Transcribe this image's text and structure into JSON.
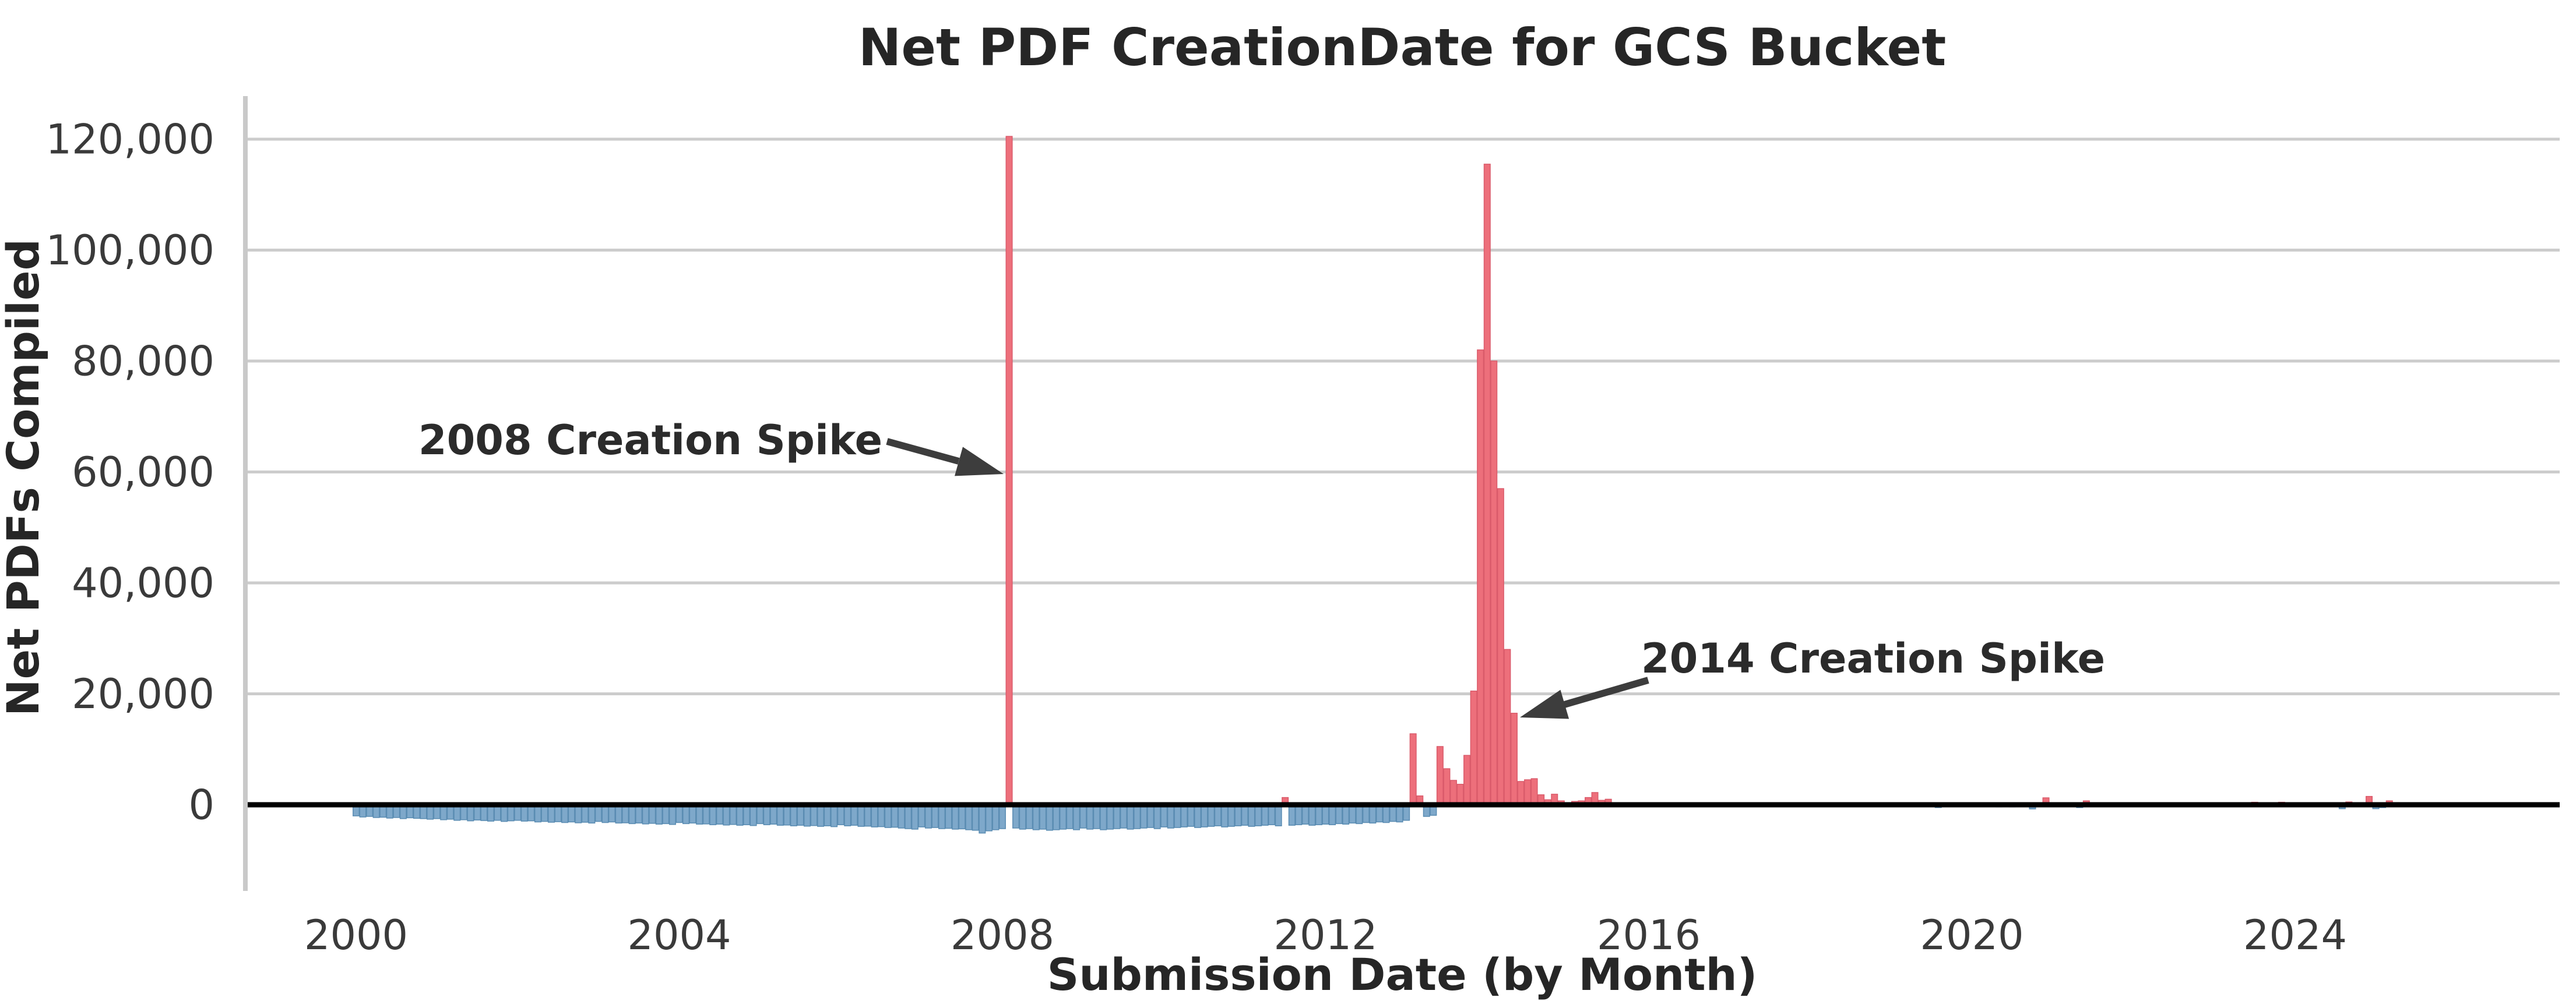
{
  "labels": {
    "title": "Net PDF CreationDate for GCS Bucket",
    "xlabel": "Submission Date (by Month)",
    "ylabel": "Net PDFs Compiled"
  },
  "colors": {
    "positive_bar": "#ed6f7b",
    "positive_bar_edge": "#da5b6b",
    "negative_bar": "#7ea8ca",
    "negative_bar_edge": "#5a8cb2",
    "gridline": "#cccccc",
    "zero_line": "#000000",
    "axis_spine": "#c9c9c9",
    "text": "#262626",
    "arrow": "#3d3d3d"
  },
  "chart_data": {
    "type": "bar",
    "title": "Net PDF CreationDate for GCS Bucket",
    "xlabel": "Submission Date (by Month)",
    "ylabel": "Net PDFs Compiled",
    "grid": "horizontal",
    "legend": "none",
    "x_unit": "month",
    "start_month": "2000-01",
    "end_month": "2025-04",
    "ylim": [
      -15500,
      127700
    ],
    "xlim": [
      "1998-08",
      "2027-04"
    ],
    "yticks": [
      {
        "label": "120,000",
        "value": 120000
      },
      {
        "label": "100,000",
        "value": 100000
      },
      {
        "label": "80,000",
        "value": 80000
      },
      {
        "label": "60,000",
        "value": 60000
      },
      {
        "label": "40,000",
        "value": 40000
      },
      {
        "label": "20,000",
        "value": 20000
      },
      {
        "label": "0",
        "value": 0
      }
    ],
    "xticks": [
      {
        "label": "2000",
        "value": 2000
      },
      {
        "label": "2004",
        "value": 2004
      },
      {
        "label": "2008",
        "value": 2008
      },
      {
        "label": "2012",
        "value": 2012
      },
      {
        "label": "2016",
        "value": 2016
      },
      {
        "label": "2020",
        "value": 2020
      },
      {
        "label": "2024",
        "value": 2024
      }
    ],
    "annotations": [
      {
        "text": "2008 Creation Spike",
        "points_to": {
          "month": "2008-02",
          "value": 60000
        }
      },
      {
        "text": "2014 Creation Spike",
        "points_to": {
          "month": "2014-05",
          "value": 19000
        }
      }
    ],
    "notable_points": [
      {
        "month": "2008-02",
        "value": 120500
      },
      {
        "month": "2014-01",
        "value": 115500
      }
    ],
    "monthly_values_by_year": {
      "2000": [
        -2000,
        -2200,
        -2100,
        -2300,
        -2250,
        -2400,
        -2300,
        -2500,
        -2350,
        -2450,
        -2500,
        -2600
      ],
      "2001": [
        -2500,
        -2700,
        -2600,
        -2800,
        -2700,
        -2900,
        -2750,
        -2850,
        -2950,
        -2800,
        -3000,
        -2900
      ],
      "2002": [
        -2800,
        -2950,
        -2900,
        -3100,
        -3000,
        -3150,
        -3050,
        -3200,
        -3100,
        -3250,
        -3150,
        -3300
      ],
      "2003": [
        -3000,
        -3200,
        -3100,
        -3300,
        -3250,
        -3400,
        -3300,
        -3450,
        -3350,
        -3500,
        -3400,
        -3550
      ],
      "2004": [
        -3200,
        -3400,
        -3300,
        -3500,
        -3450,
        -3600,
        -3500,
        -3650,
        -3550,
        -3700,
        -3600,
        -3750
      ],
      "2005": [
        -3400,
        -3600,
        -3500,
        -3700,
        -3650,
        -3800,
        -3700,
        -3850,
        -3750,
        -3900,
        -3800,
        -3950
      ],
      "2006": [
        -3600,
        -3800,
        -3700,
        -3900,
        -3850,
        -4000,
        -3950,
        -4100,
        -4050,
        -4200,
        -4300,
        -4400
      ],
      "2007": [
        -4000,
        -4200,
        -4100,
        -4300,
        -4250,
        -4400,
        -4350,
        -4500,
        -4600,
        -5100,
        -4700,
        -4500
      ],
      "2008": [
        -4300,
        120500,
        -4200,
        -4400,
        -4300,
        -4500,
        -4400,
        -4600,
        -4500,
        -4400,
        -4300,
        -4500
      ],
      "2009": [
        -4200,
        -4400,
        -4300,
        -4500,
        -4400,
        -4300,
        -4200,
        -4400,
        -4300,
        -4200,
        -4100,
        -4300
      ],
      "2010": [
        -4000,
        -4200,
        -4100,
        -4000,
        -3900,
        -4100,
        -4000,
        -3900,
        -3800,
        -4000,
        -3900,
        -3800
      ],
      "2011": [
        -3700,
        -3900,
        -3800,
        -3700,
        -3600,
        -3800,
        1300,
        -3700,
        -3600,
        -3500,
        -3700,
        -3600
      ],
      "2012": [
        -3500,
        -3600,
        -3400,
        -3500,
        -3300,
        -3400,
        -3200,
        -3300,
        -3100,
        -3200,
        -3000,
        -3100
      ],
      "2013": [
        -2800,
        12800,
        1600,
        -2100,
        -1900,
        10500,
        6500,
        4400,
        3700,
        8900,
        20500,
        82000
      ],
      "2014": [
        115500,
        80000,
        57000,
        28000,
        16500,
        4200,
        4500,
        4700,
        1800,
        900,
        1900,
        700
      ],
      "2015": [
        300,
        600,
        700,
        1300,
        2200,
        800,
        1000,
        0,
        0,
        0,
        350,
        0
      ],
      "2016": [
        300,
        0,
        0,
        0,
        0,
        0,
        0,
        0,
        0,
        0,
        0,
        0
      ],
      "2017": [
        0,
        0,
        0,
        0,
        0,
        0,
        0,
        0,
        0,
        0,
        0,
        0
      ],
      "2018": [
        0,
        0,
        0,
        0,
        0,
        0,
        0,
        0,
        0,
        0,
        0,
        0
      ],
      "2019": [
        0,
        0,
        0,
        0,
        0,
        0,
        0,
        -500,
        0,
        0,
        0,
        350
      ],
      "2020": [
        0,
        0,
        0,
        0,
        -400,
        0,
        -400,
        0,
        0,
        -750,
        0,
        1250
      ],
      "2021": [
        0,
        0,
        0,
        0,
        -500,
        700,
        0,
        0,
        0,
        0,
        0,
        0
      ],
      "2022": [
        0,
        0,
        0,
        0,
        0,
        0,
        0,
        0,
        -300,
        0,
        0,
        0
      ],
      "2023": [
        0,
        0,
        0,
        0,
        0,
        -300,
        450,
        0,
        0,
        0,
        450,
        -350
      ],
      "2024": [
        0,
        0,
        0,
        0,
        0,
        0,
        0,
        -700,
        500,
        0,
        0,
        1500
      ],
      "2025": [
        -700,
        -500,
        700,
        400,
        0,
        0,
        0,
        0,
        0,
        0,
        0,
        0
      ]
    }
  }
}
